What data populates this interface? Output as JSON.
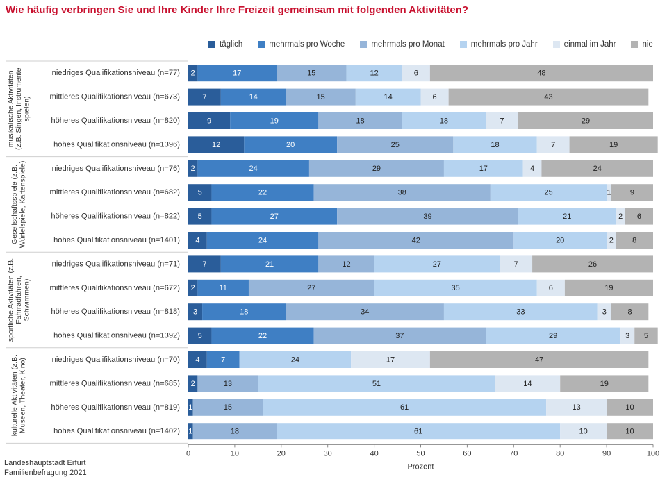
{
  "title": "Wie häufig verbringen Sie und Ihre Kinder Ihre Freizeit gemeinsam mit folgenden Aktivitäten?",
  "source": [
    "Landeshauptstadt Erfurt",
    "Familienbefragung 2021"
  ],
  "chart_data": {
    "type": "bar",
    "orientation": "horizontal",
    "stacked": true,
    "xlabel": "Prozent",
    "xlim": [
      0,
      100
    ],
    "xticks": [
      0,
      10,
      20,
      30,
      40,
      50,
      60,
      70,
      80,
      90,
      100
    ],
    "legend_position": "top",
    "series": [
      {
        "name": "täglich",
        "color": "#2a5d9a"
      },
      {
        "name": "mehrmals pro Woche",
        "color": "#3f7fc4"
      },
      {
        "name": "mehrmals pro Monat",
        "color": "#96b5d9"
      },
      {
        "name": "mehrmals pro Jahr",
        "color": "#b5d3f0"
      },
      {
        "name": "einmal im Jahr",
        "color": "#dde7f2"
      },
      {
        "name": "nie",
        "color": "#b3b3b3"
      }
    ],
    "groups": [
      {
        "label": "musikalische Aktivitäten (z.B. Singen, Instrumente spielen)",
        "label_lines": [
          "musikalische Aktivitäten",
          "(z.B. Singen, Instrumente",
          "spielen)"
        ],
        "rows": [
          {
            "label": "niedriges Qualifikationsniveau (n=77)",
            "values": [
              2,
              17,
              15,
              12,
              6,
              48
            ]
          },
          {
            "label": "mittleres Qualifikationsniveau (n=673)",
            "values": [
              7,
              14,
              15,
              14,
              6,
              43
            ]
          },
          {
            "label": "höheres Qualifikationsniveau (n=820)",
            "values": [
              9,
              19,
              18,
              18,
              7,
              29
            ]
          },
          {
            "label": "hohes Qualifikationsniveau (n=1396)",
            "values": [
              12,
              20,
              25,
              18,
              7,
              19
            ]
          }
        ]
      },
      {
        "label": "Gesellschaftsspiele (z.B. Würfelspiele, Kartenspiele)",
        "label_lines": [
          "Gesellschaftsspiele (z.B.",
          "Würfelspiele, Kartenspiele)"
        ],
        "rows": [
          {
            "label": "niedriges Qualifikationsniveau (n=76)",
            "values": [
              2,
              24,
              29,
              17,
              4,
              24
            ]
          },
          {
            "label": "mittleres Qualifikationsniveau (n=682)",
            "values": [
              5,
              22,
              38,
              25,
              1,
              9
            ]
          },
          {
            "label": "höheres Qualifikationsniveau (n=822)",
            "values": [
              5,
              27,
              39,
              21,
              2,
              6
            ]
          },
          {
            "label": "hohes Qualifikationsniveau (n=1401)",
            "values": [
              4,
              24,
              42,
              20,
              2,
              8
            ]
          }
        ]
      },
      {
        "label": "sportliche Aktivitäten (z.B. Fahrradfahren, Schwimmen)",
        "label_lines": [
          "sportliche Aktivitäten (z.B.",
          "Fahrradfahren,",
          "Schwimmen)"
        ],
        "rows": [
          {
            "label": "niedriges Qualifikationsniveau (n=71)",
            "values": [
              7,
              21,
              12,
              27,
              7,
              26
            ]
          },
          {
            "label": "mittleres Qualifikationsniveau (n=672)",
            "values": [
              2,
              11,
              27,
              35,
              6,
              19
            ]
          },
          {
            "label": "höheres Qualifikationsniveau (n=818)",
            "values": [
              3,
              18,
              34,
              33,
              3,
              8
            ]
          },
          {
            "label": "hohes Qualifikationsniveau (n=1392)",
            "values": [
              5,
              22,
              37,
              29,
              3,
              5
            ]
          }
        ]
      },
      {
        "label": "kulturelle Aktivitäten (z.B. Museen, Theater, Kino)",
        "label_lines": [
          "kulturelle Aktivitäten (z.B.",
          "Museen, Theater, Kino)"
        ],
        "rows": [
          {
            "label": "niedriges Qualifikationsniveau (n=70)",
            "values": [
              4,
              7,
              null,
              24,
              17,
              47
            ]
          },
          {
            "label": "mittleres Qualifikationsniveau (n=685)",
            "values": [
              2,
              null,
              13,
              51,
              14,
              19
            ]
          },
          {
            "label": "höheres Qualifikationsniveau (n=819)",
            "values": [
              1,
              null,
              15,
              61,
              13,
              10
            ]
          },
          {
            "label": "hohes Qualifikationsniveau (n=1402)",
            "values": [
              1,
              null,
              18,
              61,
              10,
              10
            ]
          }
        ]
      }
    ]
  }
}
